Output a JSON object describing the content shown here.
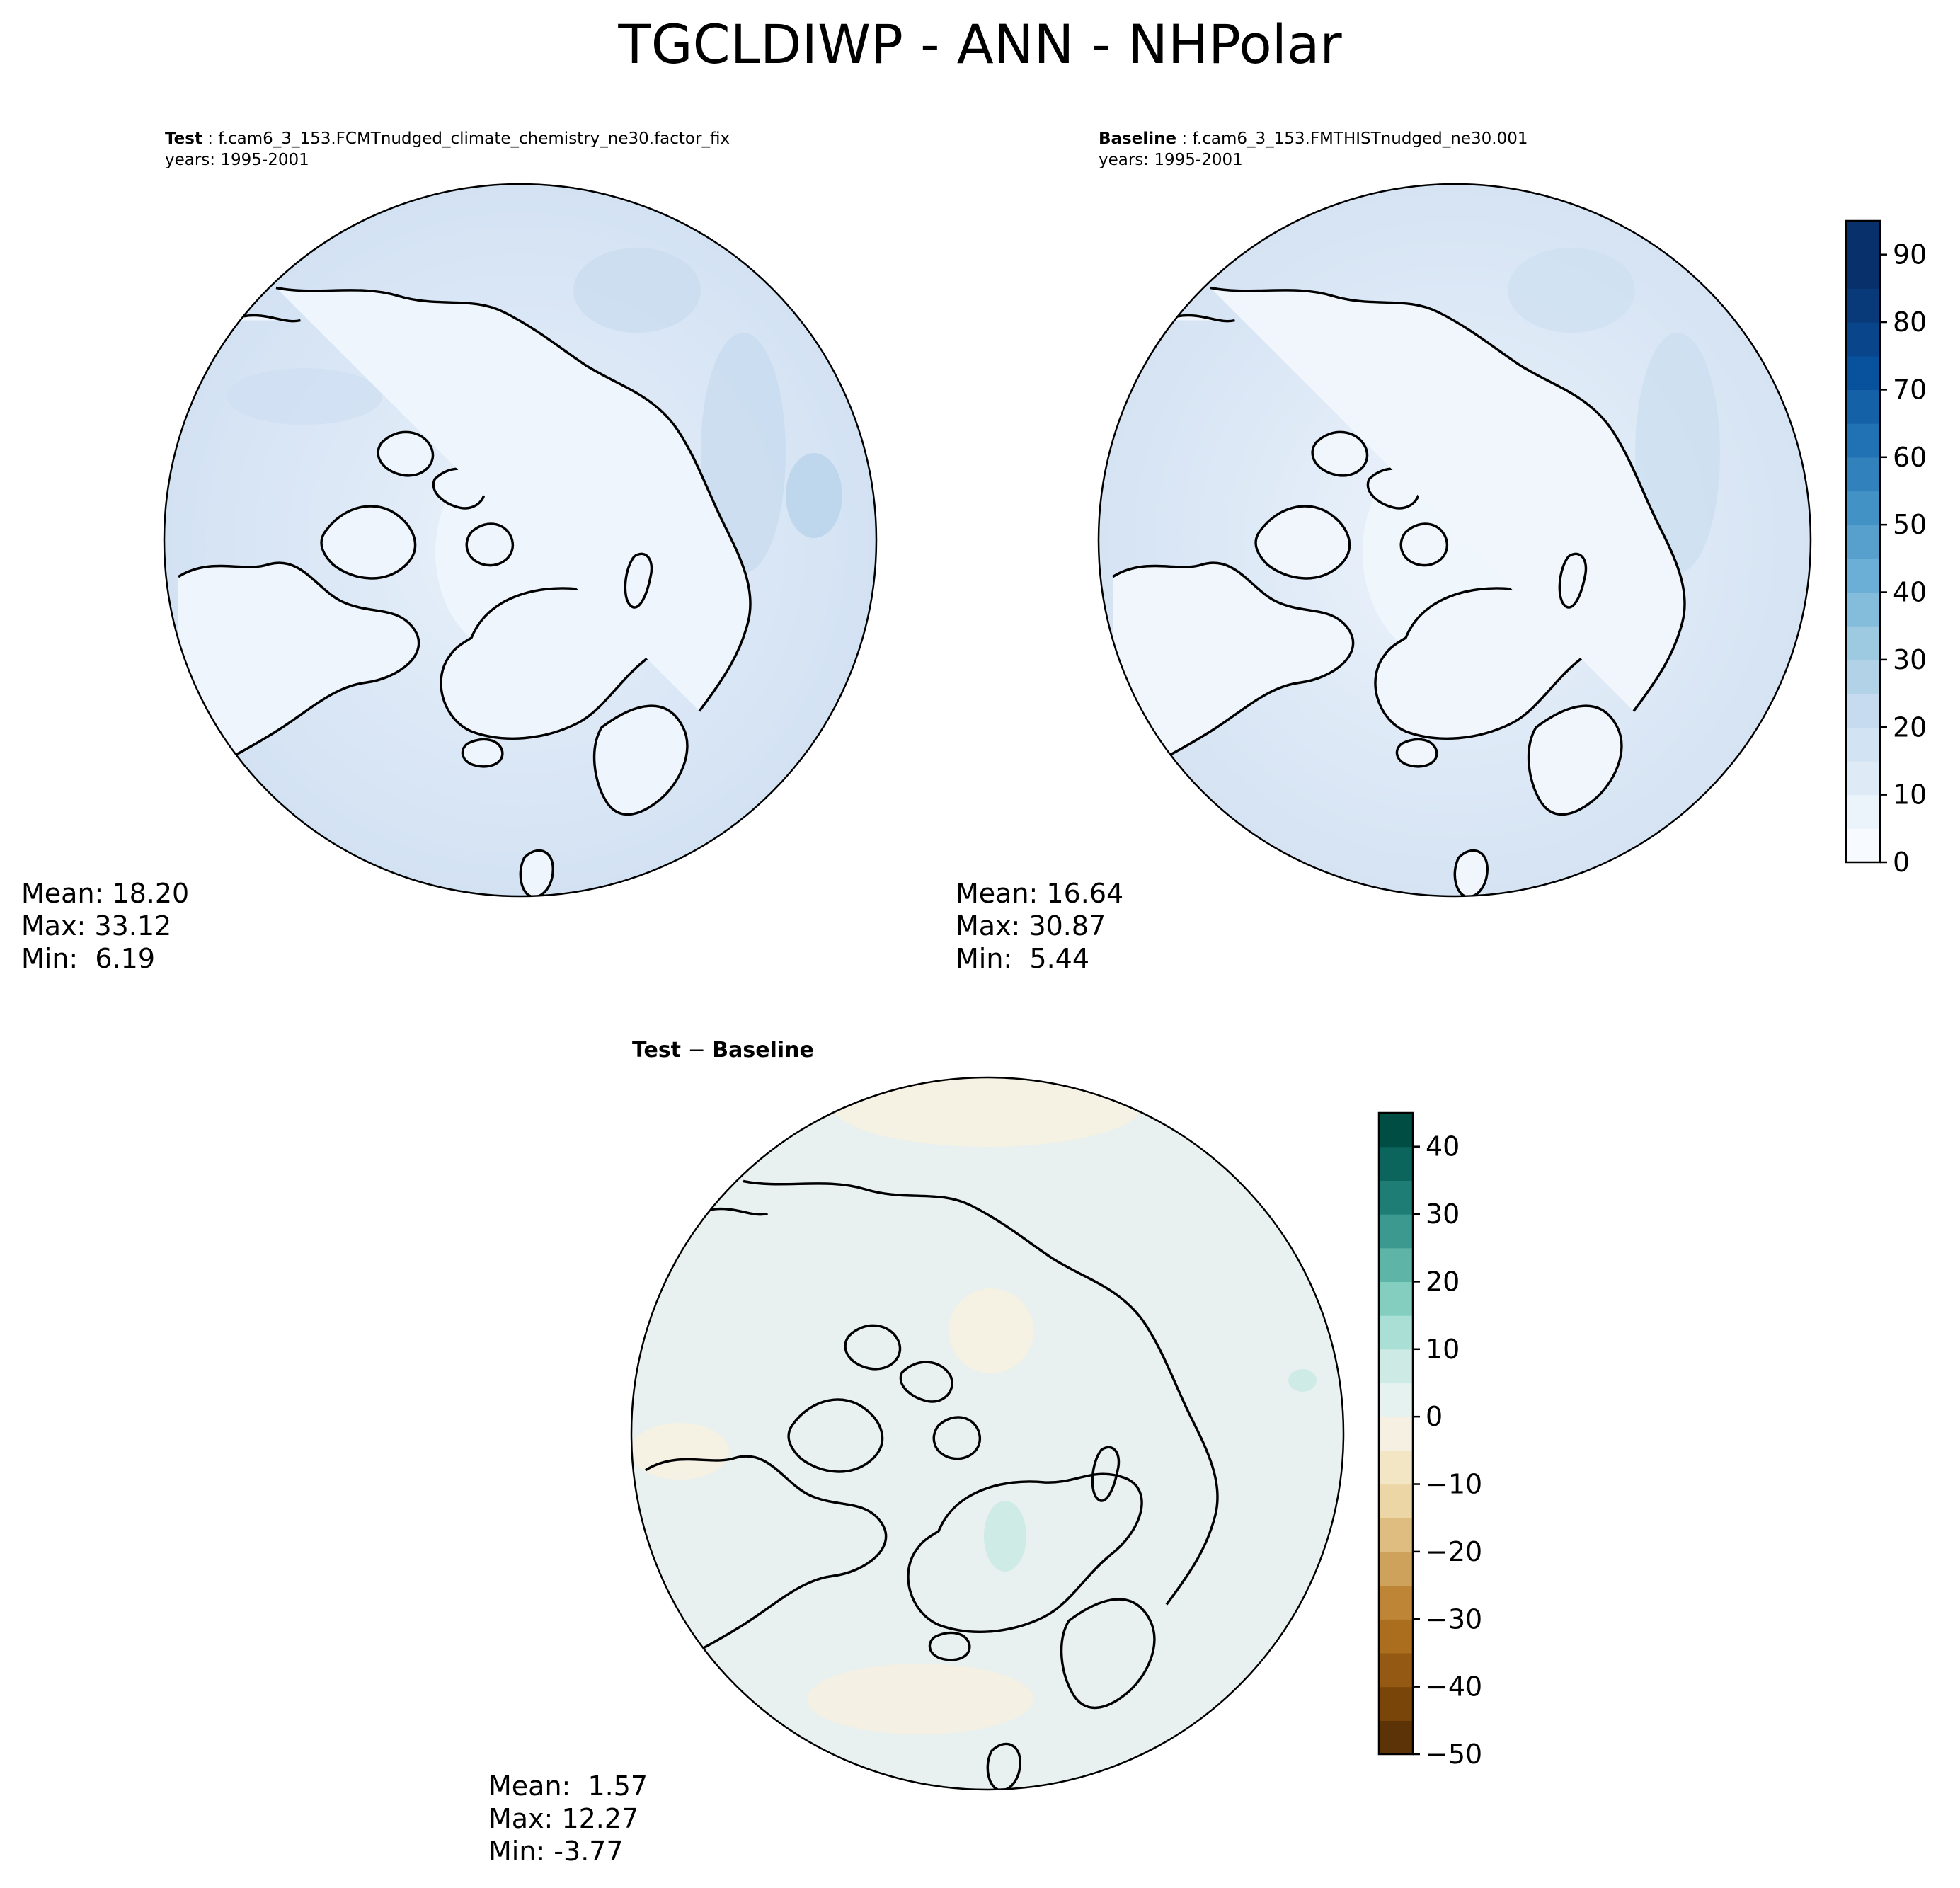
{
  "title": "TGCLDIWP - ANN - NHPolar",
  "colors": {
    "land_outline": "#000000",
    "test_base_fill": "#dae7f5",
    "diff_base_fill": "#e8f1ef"
  },
  "panels": {
    "test": {
      "label": "Test",
      "case": "f.cam6_3_153.FCMTnudged_climate_chemistry_ne30.factor_fix",
      "years": "years: 1995-2001",
      "mean": "Mean: 18.20",
      "max": "Max: 33.12",
      "min": "Min:  6.19"
    },
    "baseline": {
      "label": "Baseline",
      "case": "f.cam6_3_153.FMTHISTnudged_ne30.001",
      "years": "years: 1995-2001",
      "mean": "Mean: 16.64",
      "max": "Max: 30.87",
      "min": "Min:  5.44"
    },
    "diff": {
      "title_a": "Test",
      "title_sep": " − ",
      "title_b": "Baseline",
      "mean": "Mean:  1.57",
      "max": "Max: 12.27",
      "min": "Min: -3.77"
    }
  },
  "chart_data": [
    {
      "type": "heatmap",
      "name": "Test",
      "projection": "north polar stereographic",
      "colormap": "Blues",
      "colorbar_ticks": [
        0,
        10,
        20,
        30,
        40,
        50,
        60,
        70,
        80,
        90
      ],
      "colorbar_range": [
        0,
        95
      ],
      "colorbar_step": 5,
      "colorbar_colors": [
        "#f7fbff",
        "#ebf3fb",
        "#deebf7",
        "#d2e3f3",
        "#c6dbef",
        "#b2d2e8",
        "#9ecae1",
        "#84bcdb",
        "#6baed6",
        "#57a0ce",
        "#4292c6",
        "#3181bd",
        "#2171b5",
        "#1461a8",
        "#08519c",
        "#08458a",
        "#083979",
        "#08306b",
        "#08306b"
      ],
      "mean": 18.2,
      "max": 33.12,
      "min": 6.19
    },
    {
      "type": "heatmap",
      "name": "Baseline",
      "projection": "north polar stereographic",
      "colormap": "Blues",
      "colorbar_ticks": [
        0,
        10,
        20,
        30,
        40,
        50,
        60,
        70,
        80,
        90
      ],
      "colorbar_range": [
        0,
        95
      ],
      "mean": 16.64,
      "max": 30.87,
      "min": 5.44
    },
    {
      "type": "heatmap",
      "name": "Test − Baseline",
      "projection": "north polar stereographic",
      "colormap": "BrBG",
      "colorbar_ticks": [
        40,
        30,
        20,
        10,
        0,
        -10,
        -20,
        -30,
        -40,
        -50
      ],
      "colorbar_tick_labels": [
        "40",
        "30",
        "20",
        "10",
        "0",
        "−10",
        "−20",
        "−30",
        "−40",
        "−50"
      ],
      "colorbar_range": [
        -50,
        45
      ],
      "colorbar_step": 5,
      "colorbar_colors": [
        "#5c3306",
        "#7a4509",
        "#945a13",
        "#aa6e1e",
        "#bd8535",
        "#cfa25c",
        "#dfbd80",
        "#ecd6a5",
        "#f3e6c5",
        "#f5f0e1",
        "#e6f2ef",
        "#cdeae4",
        "#aadfd5",
        "#84cec0",
        "#5fb4a8",
        "#3c9990",
        "#1e7e76",
        "#0b655d",
        "#004e43"
      ],
      "mean": 1.57,
      "max": 12.27,
      "min": -3.77
    }
  ]
}
